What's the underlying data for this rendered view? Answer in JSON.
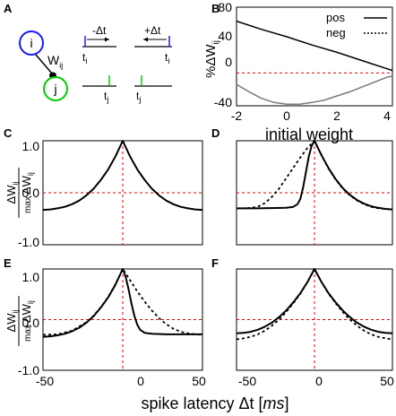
{
  "panel_labels": [
    "A",
    "B",
    "C",
    "D",
    "E",
    "F"
  ],
  "schematic": {
    "neuron_pre": "i",
    "neuron_post": "j",
    "weight_label": "W",
    "weight_sub": "ij",
    "minus_dt": "-Δt",
    "plus_dt": "+Δt",
    "ti_sym": "t",
    "ti_sub": "i",
    "tj_sym": "t",
    "tj_sub": "j",
    "pre_color": "#1a1aff",
    "post_color": "#00cc00"
  },
  "colors": {
    "reference_line": "#e60000",
    "neg_curve_b": "#7a7a7a"
  },
  "chart_data": [
    {
      "panel": "B",
      "type": "line",
      "ylabel": "%ΔW",
      "ylabel_sub": "ij",
      "xlabel": "initial weight",
      "xlim": [
        -2,
        4.2
      ],
      "ylim": [
        -40,
        80
      ],
      "xticks": [
        "-2",
        "0",
        "2",
        "4"
      ],
      "yticks": [
        "-40",
        "0",
        "40",
        "80"
      ],
      "legend": [
        "pos",
        "neg"
      ],
      "legend_position": "top-right",
      "reference_lines": {
        "y": 0
      },
      "series": [
        {
          "name": "pos",
          "x": [
            -2,
            -1,
            0,
            1,
            2,
            3,
            4,
            4.2
          ],
          "values": [
            63,
            53,
            44,
            34,
            25,
            15,
            5,
            3
          ]
        },
        {
          "name": "neg",
          "x": [
            -2,
            -1.5,
            -1,
            -0.5,
            0,
            0.5,
            1,
            1.5,
            2,
            2.5,
            3,
            3.5,
            4,
            4.2
          ],
          "values": [
            -14,
            -23,
            -31,
            -36,
            -38,
            -38,
            -36,
            -33,
            -28,
            -23,
            -17,
            -11,
            -5,
            -4
          ]
        }
      ]
    },
    {
      "panel": "C",
      "type": "line",
      "ylim": [
        -1.0,
        1.0
      ],
      "xlim": [
        -55,
        55
      ],
      "yticks": [
        "1.0",
        "0.0",
        "-1.0"
      ],
      "reference_lines": {
        "x": 0,
        "y": 0
      },
      "series": [
        {
          "name": "solid",
          "x": [
            -55,
            -50,
            -45,
            -40,
            -35,
            -30,
            -25,
            -20,
            -15,
            -10,
            -5,
            0,
            5,
            10,
            15,
            20,
            25,
            30,
            35,
            40,
            45,
            50,
            55
          ],
          "values": [
            -0.33,
            -0.32,
            -0.3,
            -0.27,
            -0.22,
            -0.15,
            -0.05,
            0.08,
            0.25,
            0.45,
            0.7,
            1.0,
            0.7,
            0.45,
            0.25,
            0.08,
            -0.05,
            -0.15,
            -0.22,
            -0.27,
            -0.3,
            -0.32,
            -0.33
          ]
        }
      ]
    },
    {
      "panel": "D",
      "type": "line",
      "ylim": [
        -1.0,
        1.0
      ],
      "xlim": [
        -55,
        55
      ],
      "reference_lines": {
        "x": 0,
        "y": 0
      },
      "series": [
        {
          "name": "solid",
          "x": [
            -55,
            -40,
            -20,
            -15,
            -12,
            -10,
            -8,
            -6,
            -4,
            -2,
            0,
            5,
            10,
            15,
            20,
            25,
            30,
            35,
            40,
            45,
            50,
            55
          ],
          "values": [
            -0.3,
            -0.3,
            -0.29,
            -0.27,
            -0.22,
            -0.12,
            0.1,
            0.4,
            0.7,
            0.9,
            1.0,
            0.72,
            0.47,
            0.26,
            0.09,
            -0.04,
            -0.14,
            -0.21,
            -0.26,
            -0.29,
            -0.31,
            -0.32
          ]
        },
        {
          "name": "dashed",
          "x": [
            -55,
            -50,
            -45,
            -40,
            -35,
            -30,
            -25,
            -20,
            -15,
            -10,
            -5,
            0,
            5,
            10,
            15,
            20,
            25,
            30,
            35,
            40,
            45,
            50,
            55
          ],
          "values": [
            -0.3,
            -0.3,
            -0.29,
            -0.27,
            -0.2,
            -0.08,
            0.08,
            0.28,
            0.48,
            0.68,
            0.86,
            1.0,
            0.72,
            0.46,
            0.25,
            0.08,
            -0.05,
            -0.15,
            -0.22,
            -0.27,
            -0.3,
            -0.31,
            -0.32
          ]
        }
      ]
    },
    {
      "panel": "E",
      "type": "line",
      "ylim": [
        -1.0,
        1.0
      ],
      "xlim": [
        -55,
        55
      ],
      "yticks": [
        "1.0",
        "0.0",
        "-1.0"
      ],
      "reference_lines": {
        "x": 0,
        "y": 0
      },
      "series": [
        {
          "name": "solid",
          "x": [
            -55,
            -50,
            -45,
            -40,
            -35,
            -30,
            -25,
            -20,
            -15,
            -10,
            -5,
            0,
            2,
            4,
            6,
            8,
            10,
            12,
            15,
            20,
            30,
            40,
            55
          ],
          "values": [
            -0.34,
            -0.33,
            -0.31,
            -0.28,
            -0.23,
            -0.16,
            -0.06,
            0.07,
            0.24,
            0.44,
            0.69,
            1.0,
            0.85,
            0.6,
            0.32,
            0.08,
            -0.1,
            -0.2,
            -0.26,
            -0.28,
            -0.29,
            -0.29,
            -0.29
          ]
        },
        {
          "name": "dashed",
          "x": [
            -55,
            -45,
            -35,
            -25,
            -20,
            -15,
            -10,
            -5,
            0,
            5,
            10,
            15,
            20,
            25,
            30,
            35,
            40,
            45,
            50,
            55
          ],
          "values": [
            -0.3,
            -0.29,
            -0.22,
            -0.05,
            0.08,
            0.25,
            0.45,
            0.7,
            1.0,
            0.78,
            0.56,
            0.36,
            0.18,
            0.03,
            -0.09,
            -0.18,
            -0.24,
            -0.27,
            -0.29,
            -0.3
          ]
        }
      ]
    },
    {
      "panel": "F",
      "type": "line",
      "ylim": [
        -1.0,
        1.0
      ],
      "xlim": [
        -55,
        55
      ],
      "reference_lines": {
        "x": 0,
        "y": 0
      },
      "series": [
        {
          "name": "solid",
          "x": [
            -55,
            -50,
            -45,
            -40,
            -35,
            -30,
            -25,
            -20,
            -15,
            -10,
            -5,
            0,
            5,
            10,
            15,
            20,
            25,
            30,
            35,
            40,
            45,
            50,
            55
          ],
          "values": [
            -0.27,
            -0.26,
            -0.24,
            -0.2,
            -0.14,
            -0.06,
            0.05,
            0.18,
            0.34,
            0.52,
            0.74,
            1.0,
            0.74,
            0.52,
            0.34,
            0.18,
            0.05,
            -0.06,
            -0.14,
            -0.2,
            -0.24,
            -0.26,
            -0.27
          ]
        },
        {
          "name": "dashed",
          "x": [
            -55,
            -50,
            -45,
            -40,
            -35,
            -30,
            -25,
            -20,
            -15,
            -10,
            -5,
            0,
            5,
            10,
            15,
            20,
            25,
            30,
            35,
            40,
            45,
            50,
            55
          ],
          "values": [
            -0.39,
            -0.37,
            -0.34,
            -0.29,
            -0.22,
            -0.12,
            0.0,
            0.15,
            0.32,
            0.51,
            0.74,
            1.0,
            0.74,
            0.51,
            0.32,
            0.15,
            0.0,
            -0.12,
            -0.22,
            -0.29,
            -0.34,
            -0.37,
            -0.39
          ]
        }
      ]
    }
  ],
  "shared_axes": {
    "xticks": [
      "-50",
      "0",
      "50"
    ],
    "xlabel_main": "spike latency Δt [",
    "xlabel_unit": "ms",
    "xlabel_close": "]",
    "ylabel_num": "ΔW",
    "ylabel_num_sub": "ij",
    "ylabel_den_prefix": "max",
    "ylabel_den": "ΔW",
    "ylabel_den_sub": "ij"
  }
}
